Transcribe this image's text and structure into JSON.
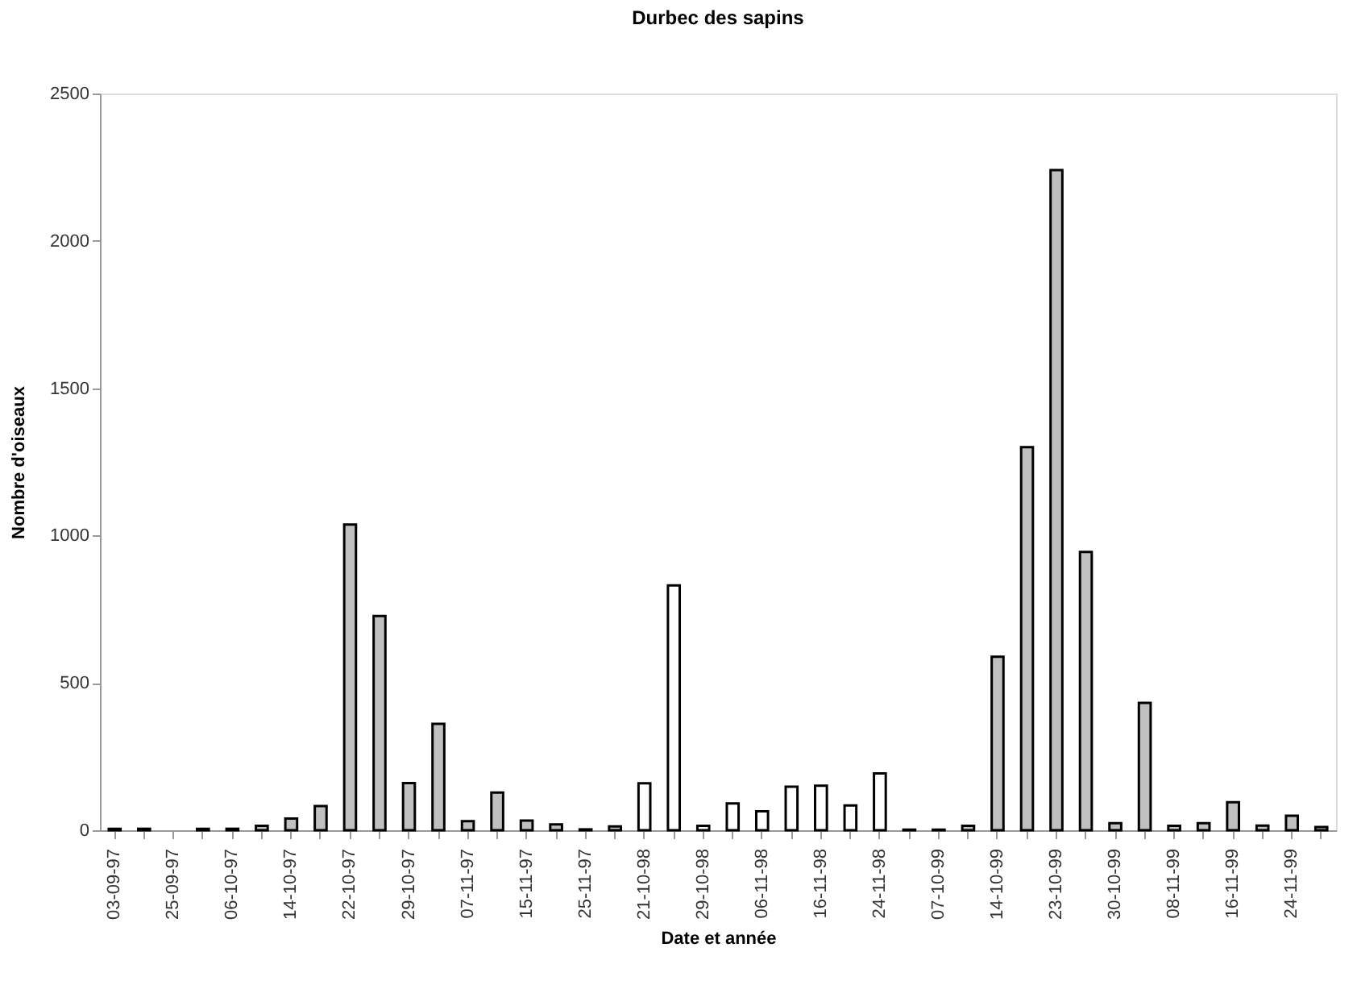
{
  "chart_data": {
    "type": "bar",
    "title": "Durbec des sapins",
    "xlabel": "Date et année",
    "ylabel": "Nombre d'oiseaux",
    "categories": [
      "03-09-97",
      null,
      "25-09-97",
      null,
      "06-10-97",
      null,
      "14-10-97",
      null,
      "22-10-97",
      null,
      "29-10-97",
      null,
      "07-11-97",
      null,
      "15-11-97",
      null,
      "25-11-97",
      null,
      "21-10-98",
      null,
      "29-10-98",
      null,
      "06-11-98",
      null,
      "16-11-98",
      null,
      "24-11-98",
      null,
      "07-10-99",
      null,
      "14-10-99",
      null,
      "23-10-99",
      null,
      "30-10-99",
      null,
      "08-11-99",
      null,
      "16-11-99",
      null,
      "24-11-99",
      null
    ],
    "values": [
      5,
      5,
      0,
      5,
      5,
      15,
      40,
      82,
      1037,
      727,
      160,
      361,
      31,
      128,
      33,
      20,
      3,
      13,
      159,
      831,
      15,
      91,
      64,
      148,
      151,
      84,
      193,
      2,
      2,
      15,
      589,
      1300,
      2240,
      944,
      24,
      432,
      15,
      24,
      95,
      16,
      49,
      11
    ],
    "colors": [
      "#c0c0c0",
      "#c0c0c0",
      "#c0c0c0",
      "#c0c0c0",
      "#c0c0c0",
      "#c0c0c0",
      "#c0c0c0",
      "#c0c0c0",
      "#c0c0c0",
      "#c0c0c0",
      "#c0c0c0",
      "#c0c0c0",
      "#c0c0c0",
      "#c0c0c0",
      "#c0c0c0",
      "#c0c0c0",
      "#c0c0c0",
      "#c0c0c0",
      "#ffffff",
      "#ffffff",
      "#ffffff",
      "#ffffff",
      "#ffffff",
      "#ffffff",
      "#ffffff",
      "#ffffff",
      "#ffffff",
      "#c0c0c0",
      "#c0c0c0",
      "#c0c0c0",
      "#c0c0c0",
      "#c0c0c0",
      "#c0c0c0",
      "#c0c0c0",
      "#c0c0c0",
      "#c0c0c0",
      "#c0c0c0",
      "#c0c0c0",
      "#c0c0c0",
      "#c0c0c0",
      "#c0c0c0",
      "#c0c0c0"
    ],
    "ylim": [
      0,
      2500
    ],
    "yticks": [
      0,
      500,
      1000,
      1500,
      2000,
      2500
    ],
    "grid": false
  }
}
